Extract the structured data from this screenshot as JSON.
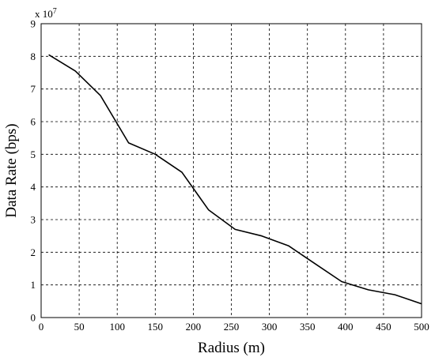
{
  "chart_data": {
    "type": "line",
    "xlabel": "Radius (m)",
    "ylabel": "Data Rate (bps)",
    "exponent_label": {
      "base": "x 10",
      "power": "7"
    },
    "xlim": [
      0,
      500
    ],
    "ylim": [
      0,
      9
    ],
    "xticks": [
      "0",
      "50",
      "100",
      "150",
      "200",
      "250",
      "300",
      "350",
      "400",
      "450",
      "500"
    ],
    "yticks": [
      "0",
      "1",
      "2",
      "3",
      "4",
      "5",
      "6",
      "7",
      "8",
      "9"
    ],
    "grid": true,
    "series": [
      {
        "x": [
          10,
          45,
          78,
          115,
          150,
          185,
          220,
          255,
          290,
          325,
          360,
          395,
          430,
          465,
          500
        ],
        "y": [
          8.05,
          7.55,
          6.8,
          5.35,
          5.0,
          4.45,
          3.3,
          2.7,
          2.5,
          2.2,
          1.65,
          1.1,
          0.85,
          0.7,
          0.42
        ]
      }
    ]
  }
}
